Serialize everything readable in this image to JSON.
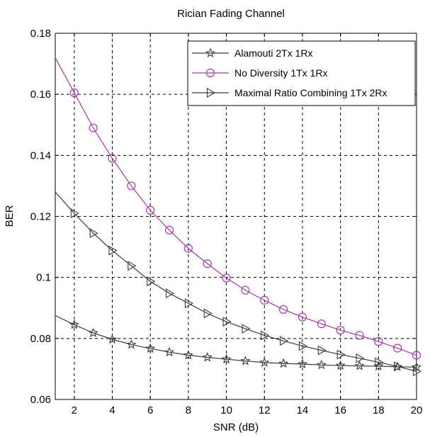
{
  "chart_data": {
    "type": "line",
    "title": "Rician Fading Channel",
    "xlabel": "SNR (dB)",
    "ylabel": "BER",
    "xlim": [
      1,
      20
    ],
    "ylim": [
      0.06,
      0.18
    ],
    "xticks": [
      2,
      4,
      6,
      8,
      10,
      12,
      14,
      16,
      18,
      20
    ],
    "xtick_labels": [
      "2",
      "4",
      "6",
      "8",
      "10",
      "12",
      "14",
      "16",
      "18",
      "20"
    ],
    "yticks": [
      0.06,
      0.08,
      0.1,
      0.12,
      0.14,
      0.16,
      0.18
    ],
    "ytick_labels": [
      "0.06",
      "0.08",
      "0.1",
      "0.12",
      "0.14",
      "0.16",
      "0.18"
    ],
    "grid": true,
    "legend_position": "top-right",
    "x": [
      1,
      2,
      3,
      4,
      5,
      6,
      7,
      8,
      9,
      10,
      11,
      12,
      13,
      14,
      15,
      16,
      17,
      18,
      19,
      20
    ],
    "series": [
      {
        "name": "Alamouti 2Tx 1Rx",
        "marker": "star",
        "color": "#3c3c3c",
        "values": [
          0.0875,
          0.0845,
          0.0818,
          0.0797,
          0.078,
          0.0767,
          0.0755,
          0.0745,
          0.0738,
          0.0732,
          0.0726,
          0.0721,
          0.0718,
          0.0716,
          0.0713,
          0.0711,
          0.071,
          0.0709,
          0.0707,
          0.0706
        ]
      },
      {
        "name": "No Diversity 1Tx 1Rx",
        "marker": "circle",
        "color": "#a53aa8",
        "values": [
          0.172,
          0.1605,
          0.149,
          0.139,
          0.13,
          0.122,
          0.1155,
          0.1095,
          0.1045,
          0.0998,
          0.0958,
          0.0925,
          0.0895,
          0.087,
          0.0848,
          0.0827,
          0.081,
          0.079,
          0.0768,
          0.0745
        ]
      },
      {
        "name": "Maximal Ratio Combining 1Tx 2Rx",
        "marker": "triangle-right",
        "color": "#3c3c3c",
        "values": [
          0.128,
          0.121,
          0.1145,
          0.1088,
          0.1038,
          0.0987,
          0.0948,
          0.0915,
          0.0882,
          0.0855,
          0.0832,
          0.081,
          0.0792,
          0.0775,
          0.0761,
          0.0747,
          0.0735,
          0.0722,
          0.0708,
          0.0692
        ]
      }
    ]
  }
}
